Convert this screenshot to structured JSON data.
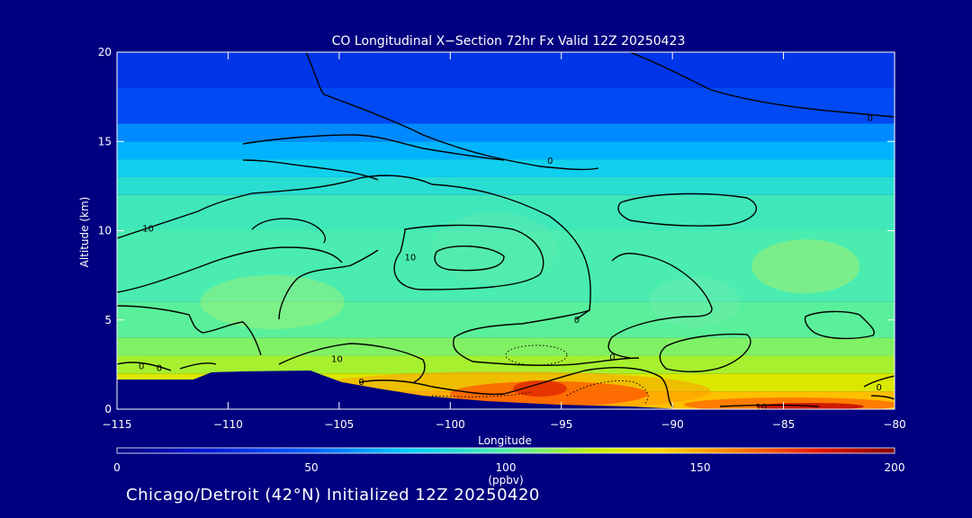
{
  "chart_data": {
    "type": "heatmap",
    "title": "CO Longitudinal X−Section 72hr  Fx Valid 12Z 20250423",
    "xlabel": "Longitude",
    "ylabel": "Altitude (km)",
    "xlim": [
      -115,
      -80
    ],
    "ylim": [
      0,
      20
    ],
    "x_ticks": [
      -115,
      -110,
      -105,
      -100,
      -95,
      -90,
      -85,
      -80
    ],
    "x_tick_labels": [
      "−115",
      "−110",
      "−105",
      "−100",
      "−95",
      "−90",
      "−85",
      "−80"
    ],
    "y_ticks": [
      0,
      5,
      10,
      15,
      20
    ],
    "y_tick_labels": [
      "0",
      "5",
      "10",
      "15",
      "20"
    ],
    "colorbar": {
      "min": 0,
      "max": 200,
      "ticks": [
        0,
        50,
        100,
        150,
        200
      ],
      "tick_labels": [
        "0",
        "50",
        "100",
        "150",
        "200"
      ],
      "unit_label": "(ppbv)"
    },
    "field_levels": [
      {
        "alt_min": 18,
        "alt_max": 20,
        "value": 35
      },
      {
        "alt_min": 16,
        "alt_max": 18,
        "value": 42
      },
      {
        "alt_min": 15,
        "alt_max": 16,
        "value": 60
      },
      {
        "alt_min": 14,
        "alt_max": 15,
        "value": 70
      },
      {
        "alt_min": 13,
        "alt_max": 14,
        "value": 80
      },
      {
        "alt_min": 12,
        "alt_max": 13,
        "value": 88
      },
      {
        "alt_min": 10,
        "alt_max": 12,
        "value": 95
      },
      {
        "alt_min": 6,
        "alt_max": 10,
        "value": 98
      },
      {
        "alt_min": 4,
        "alt_max": 6,
        "value": 102
      },
      {
        "alt_min": 3,
        "alt_max": 4,
        "value": 110
      },
      {
        "alt_min": 2,
        "alt_max": 3,
        "value": 118
      },
      {
        "alt_min": 1,
        "alt_max": 2,
        "value": 130
      },
      {
        "alt_min": 0,
        "alt_max": 1,
        "value": 145
      }
    ],
    "contour_labels": [
      {
        "text": "0",
        "lon": -95.5,
        "alt": 13.9
      },
      {
        "text": "0",
        "lon": -81.1,
        "alt": 16.3
      },
      {
        "text": "10",
        "lon": -113.6,
        "alt": 10.1
      },
      {
        "text": "10",
        "lon": -101.8,
        "alt": 8.5
      },
      {
        "text": "0",
        "lon": -94.3,
        "alt": 5.0
      },
      {
        "text": "0",
        "lon": -92.7,
        "alt": 2.9
      },
      {
        "text": "0",
        "lon": -113.9,
        "alt": 2.4
      },
      {
        "text": "0",
        "lon": -113.1,
        "alt": 2.3
      },
      {
        "text": "10",
        "lon": -105.1,
        "alt": 2.8
      },
      {
        "text": "0",
        "lon": -104.0,
        "alt": 1.5
      },
      {
        "text": "0",
        "lon": -80.7,
        "alt": 1.2
      },
      {
        "text": "10",
        "lon": -86.0,
        "alt": 0.1
      }
    ]
  },
  "footer_text": "Chicago/Detroit (42°N) Initialized 12Z 20250420"
}
